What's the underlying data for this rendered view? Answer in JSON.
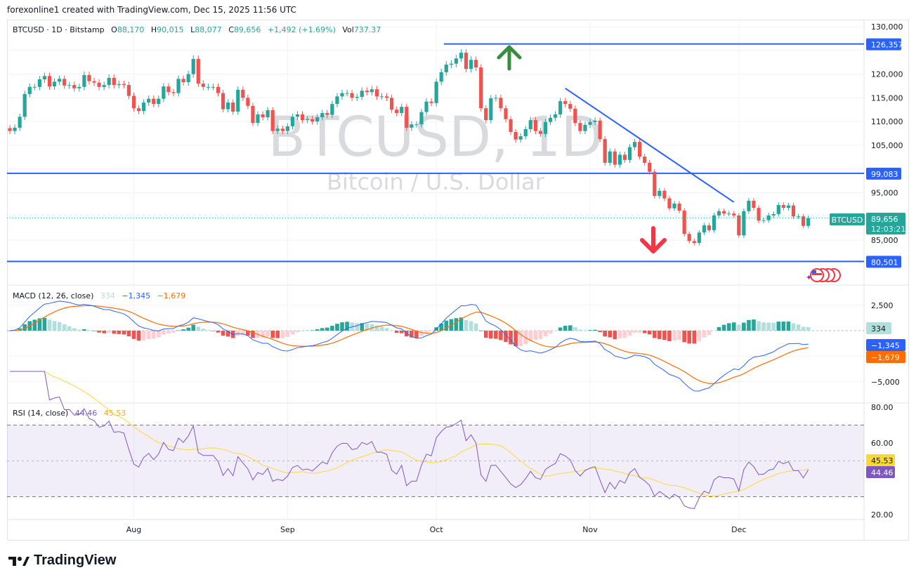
{
  "attribution": "forexonline1 created with TradingView.com, Dec 15, 2025 11:56 UTC",
  "legend": {
    "symbol": "BTCUSD · 1D · Bitstamp",
    "o_label": "O",
    "o": "88,170",
    "h_label": "H",
    "h": "90,015",
    "l_label": "L",
    "l": "88,077",
    "c_label": "C",
    "c": "89,656",
    "change": "+1,492 (+1.69%)",
    "vol_label": "Vol",
    "vol": "737.37"
  },
  "watermark": {
    "title": "BTCUSD, 1D",
    "subtitle": "Bitcoin / U.S. Dollar"
  },
  "colors": {
    "up": "#26a69a",
    "down": "#ef5350",
    "hline": "#2962ff",
    "macd": "#2962ff",
    "signal": "#ff6d00",
    "rsi": "#7e57c2",
    "rsi_ma": "#fdd835"
  },
  "price_axis": {
    "ticks": [
      "130,000",
      "120,000",
      "115,000",
      "110,000",
      "105,000",
      "95,000",
      "85,000"
    ]
  },
  "levels": [
    {
      "value": 126357,
      "label": "126,357"
    },
    {
      "value": 99083,
      "label": "99,083"
    },
    {
      "value": 80501,
      "label": "80,501"
    }
  ],
  "trendline": {
    "from": {
      "date": "Oct 27",
      "price": 117000
    },
    "to": {
      "date": "Nov 30",
      "price": 93000
    }
  },
  "arrows": [
    {
      "direction": "up",
      "color": "#388e3c"
    },
    {
      "direction": "down",
      "color": "#f23645"
    }
  ],
  "last_price": {
    "symbol": "BTCUSD",
    "price": "89,656",
    "countdown": "12:03:21"
  },
  "time_axis": {
    "ticks": [
      "Aug",
      "Sep",
      "Oct",
      "Nov",
      "Dec"
    ]
  },
  "macd": {
    "title": "MACD (12, 26, close)",
    "hist": "334",
    "macd": "−1,345",
    "signal": "−1,679",
    "ticks": [
      "2,500",
      "−5,000"
    ]
  },
  "rsi": {
    "title": "RSI (14, close)",
    "rsi": "44.46",
    "ma": "45.53",
    "ticks": [
      "80.00",
      "60.00",
      "20.00"
    ],
    "bands": [
      70,
      50,
      30
    ]
  },
  "brand": "TradingView",
  "chart_data": {
    "type": "candlestick",
    "symbol": "BTCUSD",
    "interval": "1D",
    "start_date": "2025-07-07",
    "end_date": "2025-12-15",
    "first_open": 108600,
    "close": [
      108000,
      108700,
      111000,
      115800,
      117300,
      117300,
      118900,
      119600,
      117400,
      118400,
      119000,
      117600,
      117700,
      117000,
      117300,
      119800,
      118500,
      118200,
      117300,
      117700,
      119200,
      117700,
      117900,
      117700,
      115400,
      112800,
      112200,
      114000,
      114800,
      113700,
      114800,
      117400,
      116200,
      116000,
      119000,
      118300,
      120000,
      123200,
      118000,
      117300,
      117300,
      117300,
      116000,
      112600,
      114000,
      112100,
      116700,
      115000,
      113300,
      109700,
      111500,
      110900,
      112400,
      108000,
      108500,
      108000,
      109000,
      111000,
      111500,
      110300,
      110500,
      110000,
      110900,
      111800,
      111400,
      113700,
      115300,
      116000,
      116000,
      115000,
      115200,
      116500,
      116200,
      116800,
      115300,
      115300,
      115000,
      112500,
      111800,
      113100,
      108700,
      109400,
      109400,
      112000,
      114200,
      113900,
      118400,
      120400,
      122000,
      122200,
      123300,
      124500,
      121100,
      123000,
      121400,
      112800,
      110300,
      114900,
      115000,
      112800,
      110500,
      107800,
      106200,
      106900,
      108400,
      110300,
      108000,
      107400,
      109900,
      110800,
      111500,
      114300,
      113700,
      112700,
      109700,
      108000,
      109300,
      109900,
      110200,
      106300,
      101300,
      103700,
      100900,
      103000,
      101900,
      104600,
      105700,
      102600,
      101300,
      99400,
      94300,
      95400,
      93800,
      91700,
      92700,
      91200,
      86300,
      84800,
      84400,
      86600,
      88100,
      87100,
      90200,
      91100,
      90600,
      90600,
      90200,
      86000,
      91100,
      93300,
      91800,
      89100,
      89200,
      90200,
      90500,
      92400,
      91800,
      92300,
      90000,
      90000,
      88000,
      89656
    ],
    "ylim": [
      78000,
      131000
    ]
  }
}
